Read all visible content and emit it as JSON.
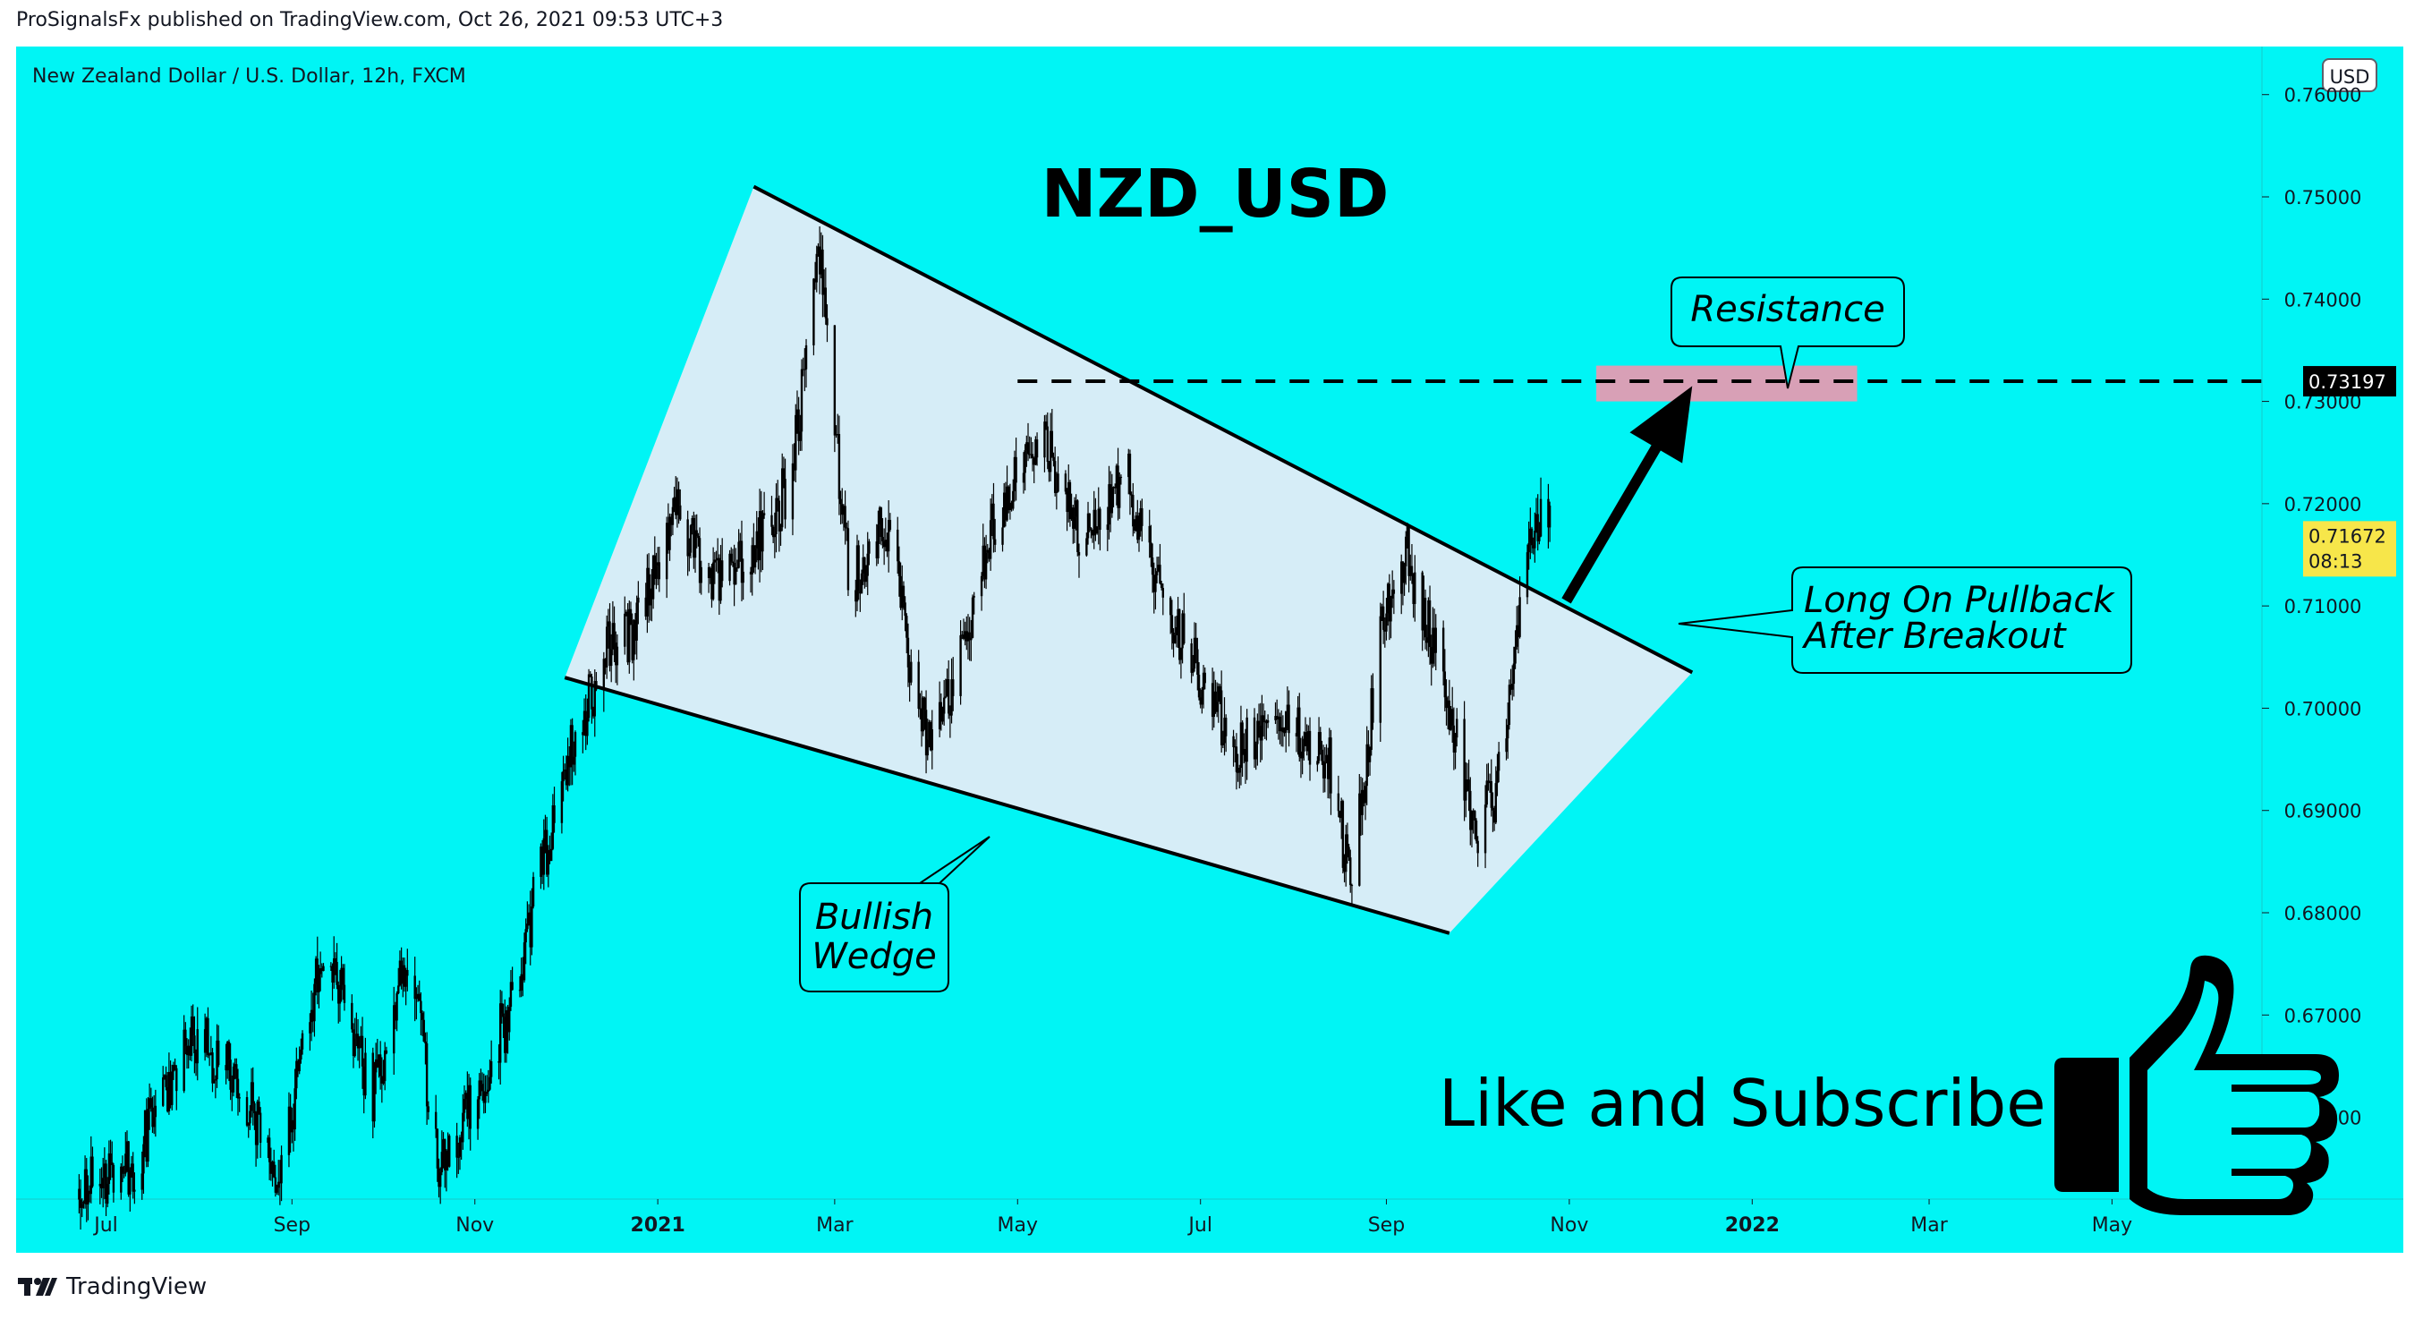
{
  "header": {
    "published_text": "ProSignalsFx published on TradingView.com, Oct 26, 2021 09:53 UTC+3"
  },
  "footer": {
    "brand_label": "TradingView"
  },
  "colors": {
    "background": "#00f5f5",
    "wedge_fill": "#e1ecf7",
    "zone_fill": "#d8a0b6",
    "price_badge": "#000000",
    "current_badge": "#f7e64a",
    "candles": "#000000"
  },
  "chart_data": {
    "type": "candlestick",
    "symbol_line": "New Zealand Dollar / U.S. Dollar, 12h, FXCM",
    "title": "NZD_USD",
    "currency_label": "USD",
    "ylim": [
      0.652,
      0.7647
    ],
    "y_ticks": [
      "0.76000",
      "0.75000",
      "0.74000",
      "0.73000",
      "0.72000",
      "0.71000",
      "0.70000",
      "0.69000",
      "0.68000",
      "0.67000",
      "0.66000"
    ],
    "x_ticks": [
      "Jul",
      "Sep",
      "Nov",
      "2021",
      "Mar",
      "May",
      "Jul",
      "Sep",
      "Nov",
      "2022",
      "Mar",
      "May"
    ],
    "x_range": [
      "2020-06-01",
      "2022-06-20"
    ],
    "price_path": [
      [
        "2020-06-22",
        0.653
      ],
      [
        "2020-07-10",
        0.655
      ],
      [
        "2020-07-28",
        0.668
      ],
      [
        "2020-08-12",
        0.665
      ],
      [
        "2020-08-28",
        0.654
      ],
      [
        "2020-09-12",
        0.678
      ],
      [
        "2020-09-28",
        0.662
      ],
      [
        "2020-10-10",
        0.676
      ],
      [
        "2020-10-20",
        0.655
      ],
      [
        "2020-11-01",
        0.662
      ],
      [
        "2020-11-12",
        0.67
      ],
      [
        "2020-11-24",
        0.685
      ],
      [
        "2020-12-04",
        0.697
      ],
      [
        "2020-12-16",
        0.706
      ],
      [
        "2020-12-26",
        0.708
      ],
      [
        "2021-01-06",
        0.72
      ],
      [
        "2021-01-18",
        0.712
      ],
      [
        "2021-02-02",
        0.716
      ],
      [
        "2021-02-14",
        0.722
      ],
      [
        "2021-02-24",
        0.744
      ],
      [
        "2021-03-06",
        0.712
      ],
      [
        "2021-03-18",
        0.719
      ],
      [
        "2021-03-30",
        0.698
      ],
      [
        "2021-04-08",
        0.7
      ],
      [
        "2021-04-22",
        0.718
      ],
      [
        "2021-05-10",
        0.726
      ],
      [
        "2021-05-24",
        0.716
      ],
      [
        "2021-06-06",
        0.723
      ],
      [
        "2021-06-16",
        0.712
      ],
      [
        "2021-06-30",
        0.704
      ],
      [
        "2021-07-12",
        0.696
      ],
      [
        "2021-07-24",
        0.698
      ],
      [
        "2021-08-04",
        0.697
      ],
      [
        "2021-08-14",
        0.694
      ],
      [
        "2021-08-20",
        0.682
      ],
      [
        "2021-08-30",
        0.707
      ],
      [
        "2021-09-08",
        0.715
      ],
      [
        "2021-09-20",
        0.703
      ],
      [
        "2021-10-01",
        0.688
      ],
      [
        "2021-10-08",
        0.692
      ],
      [
        "2021-10-20",
        0.718
      ],
      [
        "2021-10-26",
        0.7167
      ]
    ],
    "current_price": "0.71672",
    "current_countdown": "08:13",
    "resistance_price": "0.73197",
    "resistance_line_start": "2021-05-01",
    "resistance_zone": {
      "from": "2021-11-10",
      "to": "2022-02-05",
      "low": 0.73,
      "high": 0.7335
    },
    "pattern": {
      "upper_line": [
        [
          "2021-02-02",
          0.751
        ],
        [
          "2021-12-12",
          0.7035
        ]
      ],
      "lower_line": [
        [
          "2020-12-01",
          0.703
        ],
        [
          "2021-09-22",
          0.678
        ]
      ],
      "wedge_polygon": [
        [
          "2020-12-01",
          0.703
        ],
        [
          "2021-02-02",
          0.751
        ],
        [
          "2021-12-12",
          0.7035
        ],
        [
          "2021-09-22",
          0.678
        ]
      ]
    },
    "breakout_arrow": {
      "from": [
        "2021-10-31",
        0.7105
      ],
      "to": [
        "2021-12-12",
        0.7315
      ]
    },
    "annotations": {
      "resistance": "Resistance",
      "wedge_line1": "Bullish",
      "wedge_line2": "Wedge",
      "long_line1": "Long On Pullback",
      "long_line2": "After Breakout"
    },
    "cta_text": "Like and Subscribe"
  }
}
